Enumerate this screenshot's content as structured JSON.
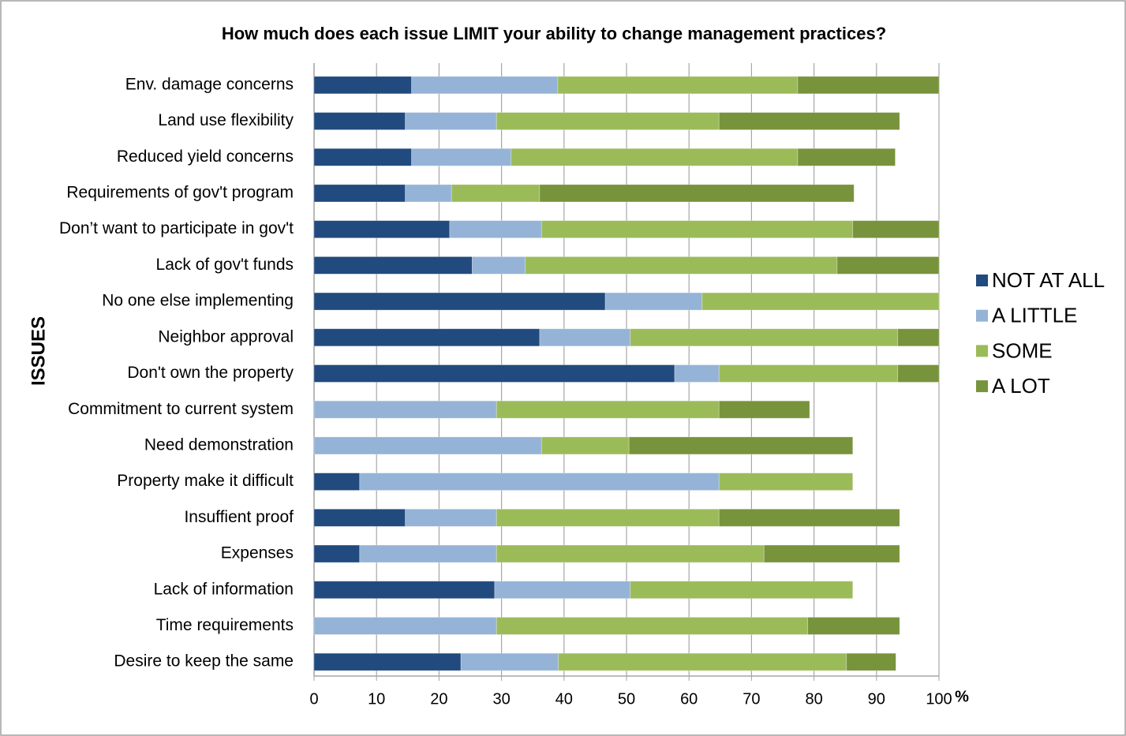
{
  "chart_data": {
    "type": "stacked-bar-horizontal",
    "title": "How much does each issue LIMIT your ability to change management practices?",
    "y_label": "ISSUES",
    "x_label": "%",
    "categories": [
      "Env. damage concerns",
      "Land use flexibility",
      "Reduced yield concerns",
      "Requirements of gov't program",
      "Don’t want to participate in gov't",
      "Lack of gov't funds",
      "No one else implementing",
      "Neighbor approval",
      "Don't own the property",
      "Commitment to current system",
      "Need demonstration",
      "Property make it difficult",
      "Insuffient proof",
      "Expenses",
      "Lack of information",
      "Time requirements",
      "Desire to keep the same"
    ],
    "series": [
      {
        "name": "NOT AT ALL",
        "color": "#214a7e",
        "values": [
          15.6,
          14.6,
          15.6,
          14.6,
          21.7,
          25.3,
          46.6,
          36.1,
          57.7,
          0,
          0,
          7.3,
          14.6,
          7.3,
          28.9,
          0,
          23.5
        ]
      },
      {
        "name": "A LITTLE",
        "color": "#95b3d7",
        "values": [
          23.4,
          14.6,
          15.9,
          7.4,
          14.7,
          8.5,
          15.5,
          14.5,
          7.1,
          29.2,
          36.4,
          57.5,
          14.6,
          21.9,
          21.7,
          29.2,
          15.6
        ]
      },
      {
        "name": "SOME",
        "color": "#9bbb59",
        "values": [
          38.4,
          35.6,
          45.9,
          14.1,
          49.8,
          49.9,
          37.9,
          42.8,
          28.6,
          35.6,
          14.0,
          21.4,
          35.6,
          42.8,
          35.6,
          49.8,
          46.1
        ]
      },
      {
        "name": "A LOT",
        "color": "#77933c",
        "values": [
          22.6,
          28.9,
          15.6,
          50.3,
          13.8,
          16.3,
          0,
          6.6,
          6.6,
          14.5,
          35.8,
          0,
          28.9,
          21.7,
          0,
          14.7,
          7.9
        ]
      }
    ],
    "xlim": [
      0,
      100
    ],
    "xticks": [
      0,
      10,
      20,
      30,
      40,
      50,
      60,
      70,
      80,
      90,
      100
    ],
    "grid": true,
    "legend": "right"
  }
}
